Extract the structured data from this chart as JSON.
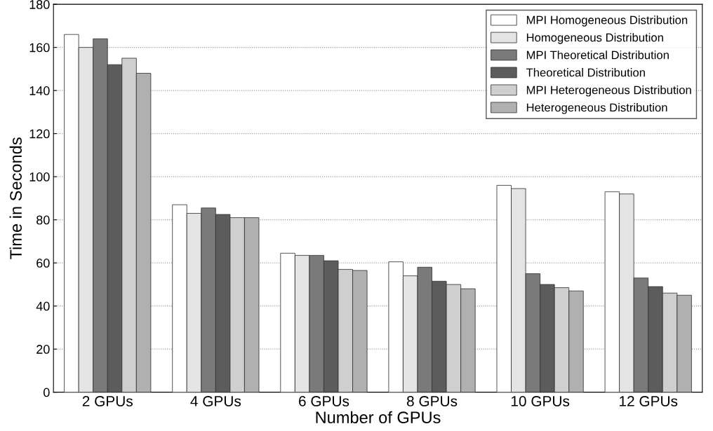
{
  "chart_data": {
    "type": "bar",
    "xlabel": "Number of GPUs",
    "ylabel": "Time in Seconds",
    "categories": [
      "2 GPUs",
      "4 GPUs",
      "6 GPUs",
      "8 GPUs",
      "10 GPUs",
      "12 GPUs"
    ],
    "series": [
      {
        "name": "MPI Homogeneous Distribution",
        "color": "#ffffff",
        "values": [
          166,
          87,
          64.5,
          60.5,
          96,
          93
        ]
      },
      {
        "name": "Homogeneous Distribution",
        "color": "#e4e4e4",
        "values": [
          160,
          83,
          63.5,
          54,
          94.5,
          92
        ]
      },
      {
        "name": "MPI Theoretical Distribution",
        "color": "#7a7a7a",
        "values": [
          164,
          85.5,
          63.5,
          58,
          55,
          53
        ]
      },
      {
        "name": "Theoretical Distribution",
        "color": "#5c5c5c",
        "values": [
          152,
          82.5,
          61,
          51.5,
          50,
          49
        ]
      },
      {
        "name": "MPI Heterogeneous Distribution",
        "color": "#cfcfcf",
        "values": [
          155,
          81,
          57,
          50,
          48.5,
          46
        ]
      },
      {
        "name": "Heterogeneous Distribution",
        "color": "#b0b0b0",
        "values": [
          148,
          81,
          56.5,
          48,
          47,
          45
        ]
      }
    ],
    "ylim": [
      0,
      180
    ],
    "yticks": [
      0,
      20,
      40,
      60,
      80,
      100,
      120,
      140,
      160,
      180
    ],
    "grid": "y",
    "legend": "top right"
  }
}
